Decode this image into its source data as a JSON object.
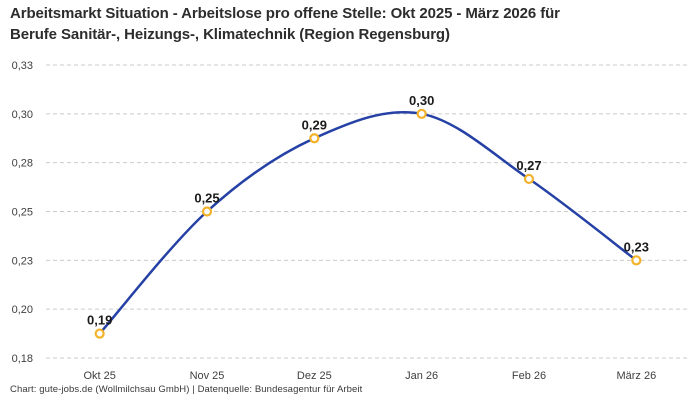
{
  "title": "Arbeitsmarkt Situation - Arbeitslose pro offene Stelle: Okt 2025 - März 2026 für Berufe Sanitär-, Heizungs-, Klimatechnik (Region Regensburg)",
  "footer": "Chart: gute-jobs.de (Wollmilchsau GmbH) | Datenquelle: Bundesagentur für Arbeit",
  "colors": {
    "line": "#2641a5",
    "marker_stroke": "#f2b32a",
    "marker_fill": "#ffffff",
    "grid": "#cbcbcb",
    "axis_text": "#3f3f3f",
    "point_label": "#1b1b1b",
    "title_text": "#2d2d2d",
    "footer_text": "#383838",
    "background": "#ffffff"
  },
  "chart_data": {
    "type": "line",
    "smooth": true,
    "marker": "open-circle",
    "title": "Arbeitsmarkt Situation - Arbeitslose pro offene Stelle: Okt 2025 - März 2026 für Berufe Sanitär-, Heizungs-, Klimatechnik (Region Regensburg)",
    "categories": [
      "Okt 25",
      "Nov 25",
      "Dez 25",
      "Jan 26",
      "Feb 26",
      "März 26"
    ],
    "series": [
      {
        "name": "Arbeitslose pro offene Stelle",
        "values": [
          0.19,
          0.25,
          0.29,
          0.3,
          0.27,
          0.23
        ],
        "point_labels": [
          "0,19",
          "0,25",
          "0,29",
          "0,30",
          "0,27",
          "0,23"
        ]
      }
    ],
    "ylim": [
      0.18,
      0.33
    ],
    "yticks": [
      {
        "value": 0.18,
        "label": "0,18"
      },
      {
        "value": 0.2,
        "label": "0,20"
      },
      {
        "value": 0.23,
        "label": "0,23"
      },
      {
        "value": 0.25,
        "label": "0,25"
      },
      {
        "value": 0.28,
        "label": "0,28"
      },
      {
        "value": 0.3,
        "label": "0,30"
      },
      {
        "value": 0.33,
        "label": "0,33"
      }
    ],
    "xlabel": "",
    "ylabel": "",
    "grid": "horizontal-dashed",
    "legend": "none"
  }
}
